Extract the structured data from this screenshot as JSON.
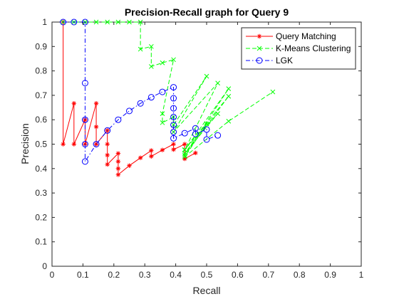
{
  "chart_data": {
    "type": "line",
    "title": "Precision-Recall graph for Query 9",
    "xlabel": "Recall",
    "ylabel": "Precision",
    "xlim": [
      0,
      1
    ],
    "ylim": [
      0,
      1
    ],
    "xticks": [
      0,
      0.1,
      0.2,
      0.3,
      0.4,
      0.5,
      0.6,
      0.7,
      0.8,
      0.9,
      1
    ],
    "yticks": [
      0,
      0.1,
      0.2,
      0.3,
      0.4,
      0.5,
      0.6,
      0.7,
      0.8,
      0.9,
      1
    ],
    "xtick_labels": [
      "0",
      "0.1",
      "0.2",
      "0.3",
      "0.4",
      "0.5",
      "0.6",
      "0.7",
      "0.8",
      "0.9",
      "1"
    ],
    "ytick_labels": [
      "0",
      "0.1",
      "0.2",
      "0.3",
      "0.4",
      "0.5",
      "0.6",
      "0.7",
      "0.8",
      "0.9",
      "1"
    ],
    "grid": false,
    "legend_position": "top-right",
    "series": [
      {
        "name": "Query Matching",
        "color": "#ff0000",
        "line_style": "solid",
        "marker": "asterisk",
        "points": [
          [
            0.036,
            1.0
          ],
          [
            0.036,
            0.5
          ],
          [
            0.071,
            0.667
          ],
          [
            0.071,
            0.5
          ],
          [
            0.107,
            0.6
          ],
          [
            0.107,
            0.5
          ],
          [
            0.143,
            0.667
          ],
          [
            0.143,
            0.571
          ],
          [
            0.143,
            0.5
          ],
          [
            0.179,
            0.556
          ],
          [
            0.179,
            0.5
          ],
          [
            0.179,
            0.455
          ],
          [
            0.179,
            0.417
          ],
          [
            0.214,
            0.462
          ],
          [
            0.214,
            0.429
          ],
          [
            0.214,
            0.4
          ],
          [
            0.214,
            0.375
          ],
          [
            0.25,
            0.412
          ],
          [
            0.286,
            0.444
          ],
          [
            0.321,
            0.474
          ],
          [
            0.321,
            0.45
          ],
          [
            0.357,
            0.476
          ],
          [
            0.393,
            0.5
          ],
          [
            0.393,
            0.478
          ],
          [
            0.429,
            0.5
          ],
          [
            0.429,
            0.44
          ],
          [
            0.464,
            0.464
          ]
        ]
      },
      {
        "name": "K-Means Clustering",
        "color": "#00ff00",
        "line_style": "dashed",
        "marker": "x",
        "points": [
          [
            0.036,
            1.0
          ],
          [
            0.071,
            1.0
          ],
          [
            0.107,
            1.0
          ],
          [
            0.143,
            1.0
          ],
          [
            0.179,
            1.0
          ],
          [
            0.214,
            1.0
          ],
          [
            0.25,
            1.0
          ],
          [
            0.286,
            1.0
          ],
          [
            0.286,
            0.889
          ],
          [
            0.321,
            0.9
          ],
          [
            0.321,
            0.818
          ],
          [
            0.357,
            0.833
          ],
          [
            0.393,
            0.846
          ],
          [
            0.357,
            0.625
          ],
          [
            0.357,
            0.588
          ],
          [
            0.393,
            0.611
          ],
          [
            0.393,
            0.579
          ],
          [
            0.5,
            0.778
          ],
          [
            0.393,
            0.55
          ],
          [
            0.536,
            0.75
          ],
          [
            0.429,
            0.476
          ],
          [
            0.571,
            0.727
          ],
          [
            0.429,
            0.455
          ],
          [
            0.571,
            0.696
          ],
          [
            0.429,
            0.478
          ],
          [
            0.536,
            0.625
          ],
          [
            0.429,
            0.462
          ],
          [
            0.5,
            0.583
          ],
          [
            0.43,
            0.449
          ],
          [
            0.571,
            0.594
          ],
          [
            0.714,
            0.714
          ]
        ]
      },
      {
        "name": "LGK",
        "color": "#0000ff",
        "line_style": "dash-dot",
        "marker": "circle",
        "points": [
          [
            0.036,
            1.0
          ],
          [
            0.071,
            1.0
          ],
          [
            0.107,
            1.0
          ],
          [
            0.107,
            0.75
          ],
          [
            0.107,
            0.6
          ],
          [
            0.107,
            0.5
          ],
          [
            0.107,
            0.429
          ],
          [
            0.143,
            0.5
          ],
          [
            0.179,
            0.556
          ],
          [
            0.214,
            0.6
          ],
          [
            0.25,
            0.636
          ],
          [
            0.286,
            0.667
          ],
          [
            0.321,
            0.692
          ],
          [
            0.357,
            0.714
          ],
          [
            0.393,
            0.733
          ],
          [
            0.393,
            0.688
          ],
          [
            0.393,
            0.647
          ],
          [
            0.393,
            0.611
          ],
          [
            0.393,
            0.579
          ],
          [
            0.393,
            0.55
          ],
          [
            0.393,
            0.524
          ],
          [
            0.429,
            0.545
          ],
          [
            0.464,
            0.565
          ],
          [
            0.464,
            0.542
          ],
          [
            0.5,
            0.56
          ],
          [
            0.5,
            0.519
          ],
          [
            0.536,
            0.536
          ]
        ]
      }
    ]
  }
}
